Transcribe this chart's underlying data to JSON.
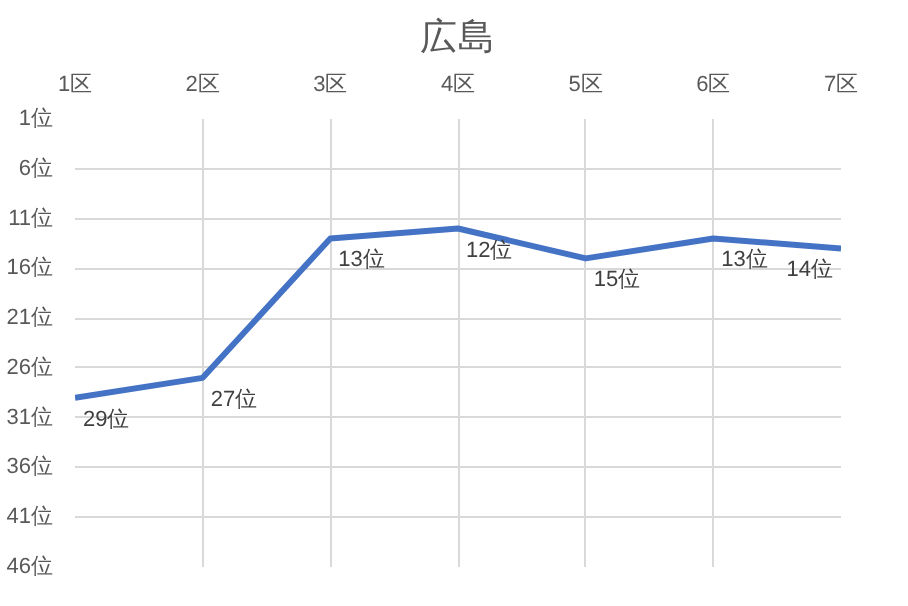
{
  "chart_data": {
    "type": "line",
    "title": "広島",
    "categories": [
      "1区",
      "2区",
      "3区",
      "4区",
      "5区",
      "6区",
      "7区"
    ],
    "series": [
      {
        "color": "#4472c4",
        "values": [
          29,
          27,
          13,
          12,
          15,
          13,
          14
        ],
        "value_labels": [
          "29位",
          "27位",
          "13位",
          "12位",
          "15位",
          "13位",
          "14位"
        ]
      }
    ],
    "ylim": [
      46,
      1
    ],
    "yticks": [
      {
        "value": 1,
        "label": "1位"
      },
      {
        "value": 6,
        "label": "6位"
      },
      {
        "value": 11,
        "label": "11位"
      },
      {
        "value": 16,
        "label": "16位"
      },
      {
        "value": 21,
        "label": "21位"
      },
      {
        "value": 26,
        "label": "26位"
      },
      {
        "value": 31,
        "label": "31位"
      },
      {
        "value": 36,
        "label": "36位"
      },
      {
        "value": 41,
        "label": "41位"
      },
      {
        "value": 46,
        "label": "46位"
      }
    ],
    "grid": true,
    "marker": "none",
    "line_style": "solid"
  }
}
